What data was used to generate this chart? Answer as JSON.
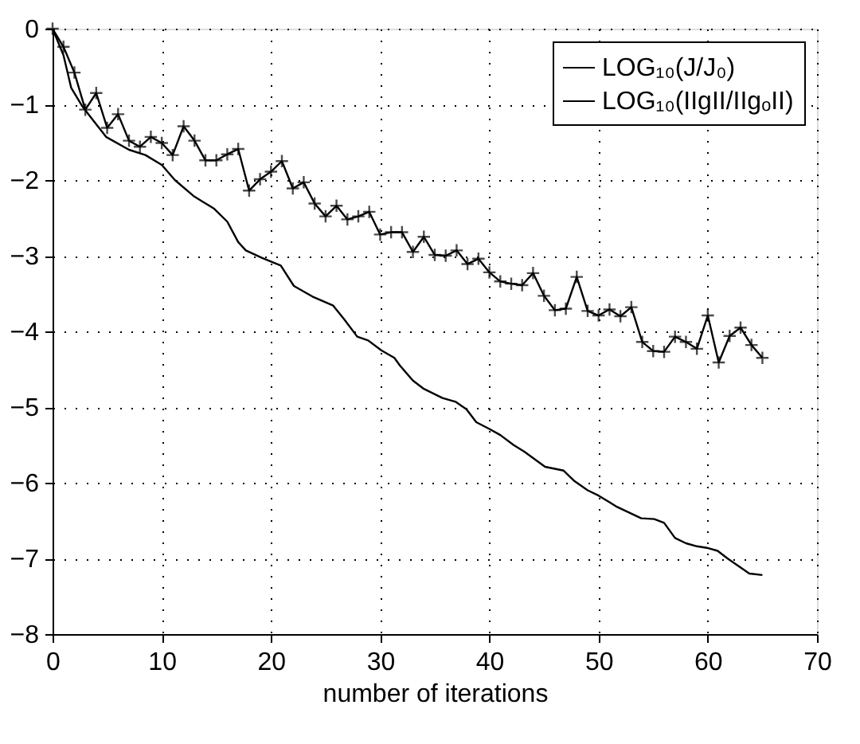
{
  "chart_data": {
    "type": "line",
    "xlabel": "number of iterations",
    "xlim": [
      0,
      70
    ],
    "xticks": [
      0,
      10,
      20,
      30,
      40,
      50,
      60,
      70
    ],
    "ylim": [
      -8,
      0
    ],
    "yticks": [
      -8,
      -7,
      -6,
      -5,
      -4,
      -3,
      -2,
      -1,
      0
    ],
    "grid": true,
    "legend": "top right",
    "line_style": "solid",
    "series": [
      {
        "name": "LOG₁₀(J/J₀)",
        "color": "#000000",
        "marker": "none",
        "x": [
          0,
          1,
          1.7,
          2.7,
          3.6,
          4.9,
          7,
          8.5,
          10,
          11.2,
          12.9,
          14.8,
          16,
          17,
          17.7,
          19.2,
          20.9,
          22.1,
          23.8,
          25.7,
          26.7,
          27.9,
          28.9,
          30.1,
          31.3,
          31.8,
          33,
          34,
          35.7,
          36.9,
          37.9,
          38.8,
          40,
          41,
          42.2,
          43.2,
          45.1,
          46.8,
          47.8,
          49,
          50,
          51.7,
          53.9,
          55.1,
          56,
          57,
          58,
          59,
          59.9,
          60.9,
          61.8,
          62.8,
          63.8,
          65
        ],
        "values": [
          0,
          -0.35,
          -0.78,
          -1.02,
          -1.19,
          -1.43,
          -1.6,
          -1.67,
          -1.8,
          -2.0,
          -2.21,
          -2.38,
          -2.55,
          -2.82,
          -2.93,
          -3.03,
          -3.13,
          -3.4,
          -3.54,
          -3.66,
          -3.84,
          -4.07,
          -4.12,
          -4.25,
          -4.35,
          -4.45,
          -4.65,
          -4.76,
          -4.88,
          -4.93,
          -5.03,
          -5.2,
          -5.29,
          -5.37,
          -5.5,
          -5.59,
          -5.79,
          -5.84,
          -5.98,
          -6.1,
          -6.17,
          -6.32,
          -6.47,
          -6.48,
          -6.53,
          -6.73,
          -6.8,
          -6.84,
          -6.86,
          -6.9,
          -7.0,
          -7.1,
          -7.2,
          -7.22
        ]
      },
      {
        "name": "LOG₁₀(IIgII/IIgₒII)",
        "color": "#000000",
        "marker": "cross",
        "x": [
          0,
          1,
          2,
          3,
          4,
          5,
          6,
          7,
          8,
          9,
          10,
          11,
          12,
          13,
          14,
          15,
          16,
          17,
          18,
          19,
          20,
          21,
          22,
          23,
          24,
          25,
          26,
          27,
          28,
          29,
          30,
          31,
          32,
          33,
          34,
          35,
          36,
          37,
          38,
          39,
          40,
          41,
          42,
          43,
          44,
          45,
          46,
          47,
          48,
          49,
          50,
          51,
          52,
          53,
          54,
          55,
          56,
          57,
          58,
          59,
          60,
          61,
          62,
          63,
          64,
          65
        ],
        "values": [
          0,
          -0.24,
          -0.58,
          -1.07,
          -0.85,
          -1.31,
          -1.13,
          -1.48,
          -1.56,
          -1.43,
          -1.51,
          -1.67,
          -1.29,
          -1.48,
          -1.74,
          -1.74,
          -1.66,
          -1.59,
          -2.14,
          -1.99,
          -1.89,
          -1.75,
          -2.11,
          -2.03,
          -2.31,
          -2.48,
          -2.34,
          -2.52,
          -2.48,
          -2.42,
          -2.72,
          -2.69,
          -2.69,
          -2.95,
          -2.75,
          -2.99,
          -3.0,
          -2.93,
          -3.11,
          -3.04,
          -3.22,
          -3.34,
          -3.37,
          -3.39,
          -3.23,
          -3.53,
          -3.72,
          -3.7,
          -3.28,
          -3.73,
          -3.79,
          -3.71,
          -3.8,
          -3.68,
          -4.14,
          -4.26,
          -4.27,
          -4.07,
          -4.14,
          -4.23,
          -3.79,
          -4.41,
          -4.06,
          -3.95,
          -4.18,
          -4.35
        ]
      }
    ]
  }
}
